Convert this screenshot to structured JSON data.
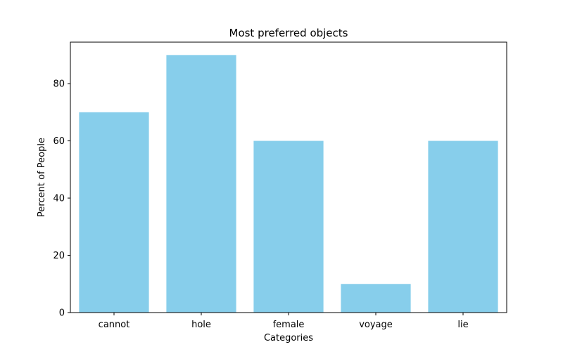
{
  "chart_data": {
    "type": "bar",
    "title": "Most preferred objects",
    "xlabel": "Categories",
    "ylabel": "Percent of People",
    "categories": [
      "cannot",
      "hole",
      "female",
      "voyage",
      "lie"
    ],
    "values": [
      70,
      90,
      60,
      10,
      60
    ],
    "ylim": [
      0,
      94.5
    ],
    "yticks": [
      0,
      20,
      40,
      60,
      80
    ],
    "bar_color": "#87ceeb",
    "grid": false,
    "legend": "none"
  }
}
